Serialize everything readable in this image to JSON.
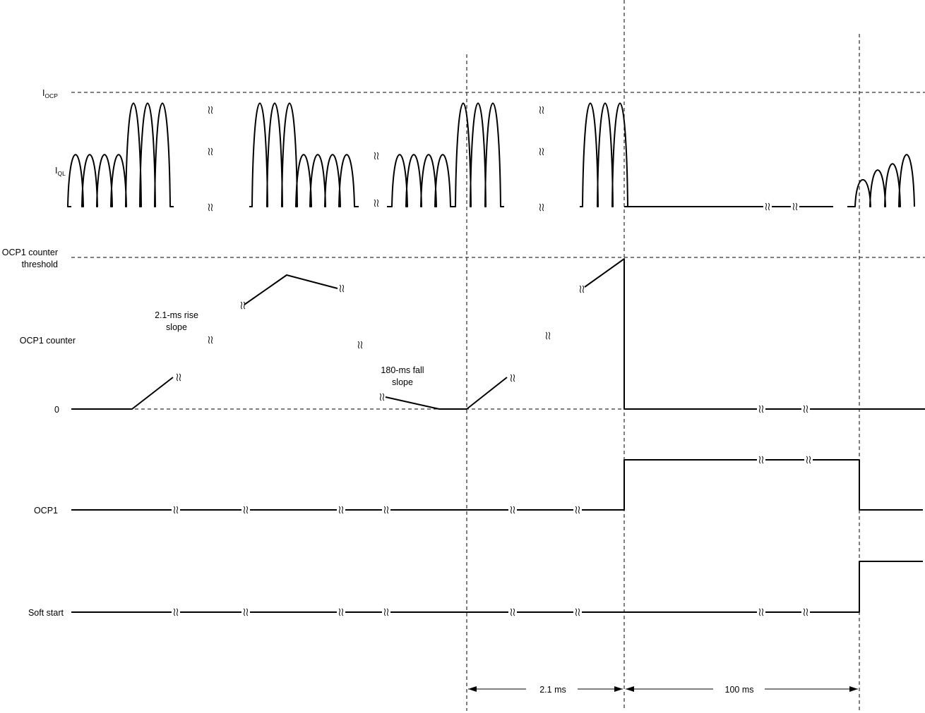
{
  "signals": {
    "iocp": {
      "main": "I",
      "sub": "OCP"
    },
    "iql": {
      "main": "I",
      "sub": "QL"
    },
    "counter_threshold_line1": "OCP1 counter",
    "counter_threshold_line2": "threshold",
    "counter": "OCP1 counter",
    "zero": "0",
    "ocp1": "OCP1",
    "soft_start": "Soft start"
  },
  "annotations": {
    "rise_line1": "2.1-ms rise",
    "rise_line2": "slope",
    "fall_line1": "180-ms fall",
    "fall_line2": "slope"
  },
  "timing": {
    "interval_1": "2.1 ms",
    "interval_2": "100 ms"
  }
}
